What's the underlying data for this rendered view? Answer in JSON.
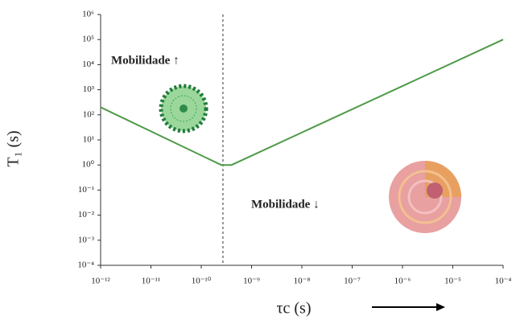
{
  "chart_data": {
    "type": "line",
    "x_label": "τc (s)",
    "y_label": "T₁ (s)",
    "x": [
      1e-12,
      2.5e-10,
      4e-10,
      0.0001
    ],
    "values": [
      200,
      1,
      1,
      100000
    ],
    "color": "#4e9a47",
    "xscale": "log",
    "yscale": "log",
    "xlim": [
      1e-12,
      0.0001
    ],
    "xticks": [
      {
        "value": 1e-12,
        "label": "10⁻¹²"
      },
      {
        "value": 1e-11,
        "label": "10⁻¹¹"
      },
      {
        "value": 1e-10,
        "label": "10⁻¹⁰"
      },
      {
        "value": 1e-09,
        "label": "10⁻⁹"
      },
      {
        "value": 1e-08,
        "label": "10⁻⁸"
      },
      {
        "value": 1e-07,
        "label": "10⁻⁷"
      },
      {
        "value": 1e-06,
        "label": "10⁻⁶"
      },
      {
        "value": 1e-05,
        "label": "10⁻⁵"
      },
      {
        "value": 0.0001,
        "label": "10⁻⁴"
      }
    ],
    "ylim": [
      0.0001,
      1000000.0
    ],
    "yticks": [
      {
        "value": 0.0001,
        "label": "10⁻⁴"
      },
      {
        "value": 0.001,
        "label": "10⁻³"
      },
      {
        "value": 0.01,
        "label": "10⁻²"
      },
      {
        "value": 0.1,
        "label": "10⁻¹"
      },
      {
        "value": 1,
        "label": "10⁰"
      },
      {
        "value": 10,
        "label": "10¹"
      },
      {
        "value": 100,
        "label": "10²"
      },
      {
        "value": 1000,
        "label": "10³"
      },
      {
        "value": 10000,
        "label": "10⁴"
      },
      {
        "value": 100000,
        "label": "10⁵"
      },
      {
        "value": 1000000,
        "label": "10⁶"
      }
    ],
    "reference_x": 2.7e-10,
    "annotations": [
      "Mobilidade ↑",
      "Mobilidade ↓"
    ]
  }
}
